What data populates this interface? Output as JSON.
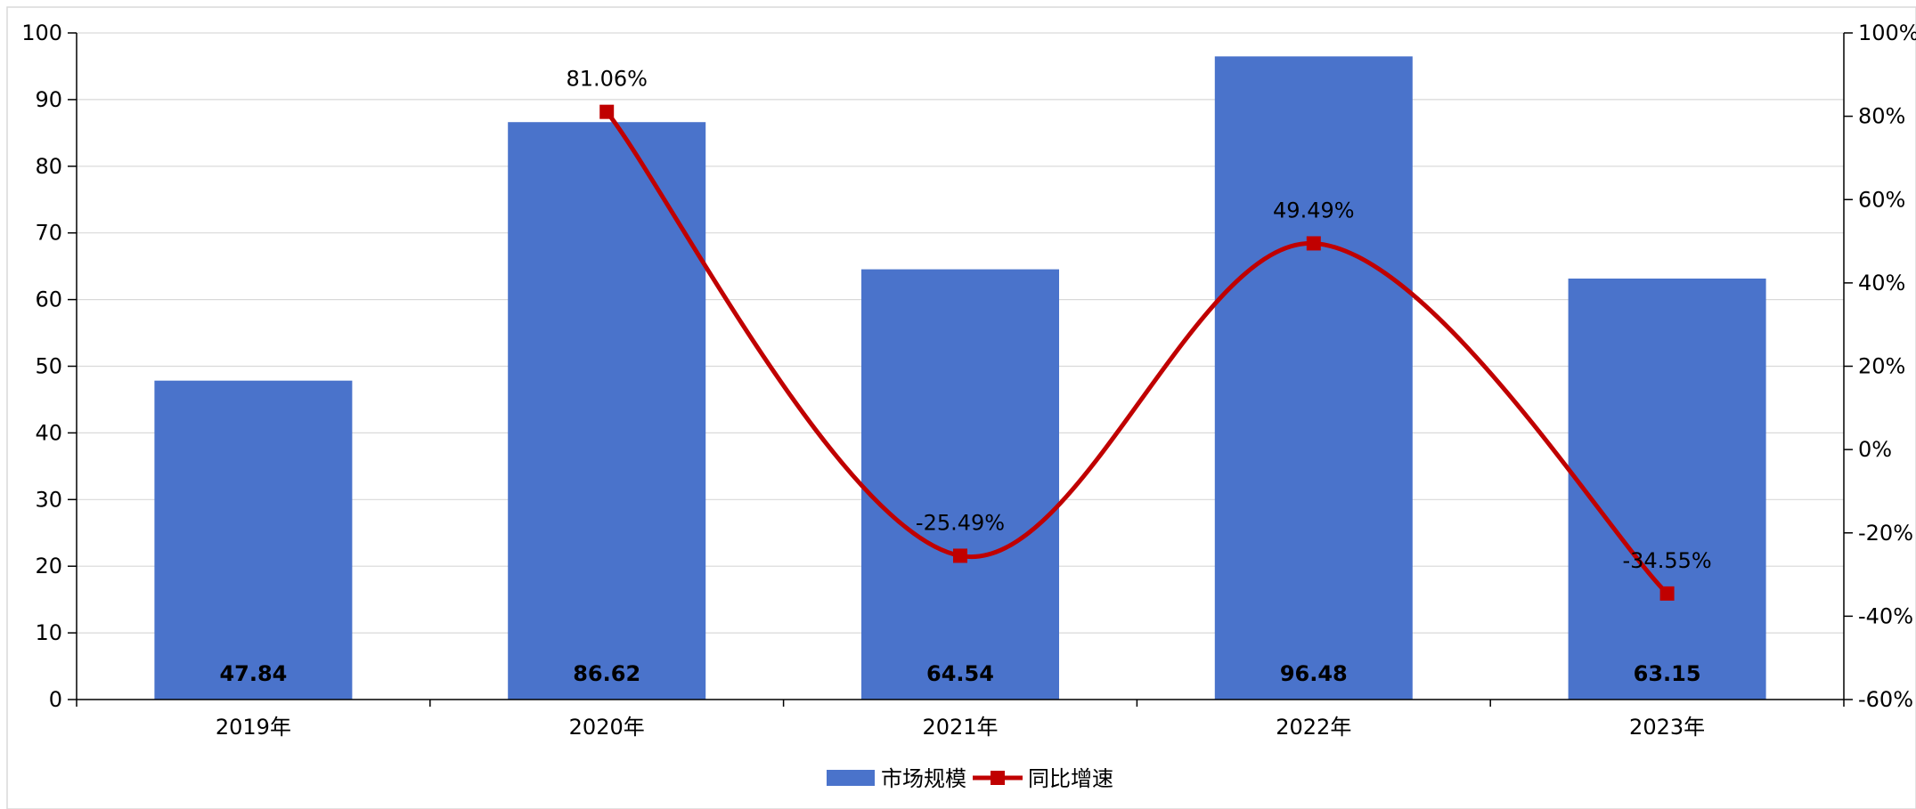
{
  "chart_data": {
    "type": "bar",
    "title": "",
    "categories": [
      "2019年",
      "2020年",
      "2021年",
      "2022年",
      "2023年"
    ],
    "series": [
      {
        "name": "市场规模",
        "type": "bar",
        "axis": "left",
        "color": "#4A73CB",
        "values": [
          47.84,
          86.62,
          64.54,
          96.48,
          63.15
        ],
        "labels": [
          "47.84",
          "86.62",
          "64.54",
          "96.48",
          "63.15"
        ]
      },
      {
        "name": "同比增速",
        "type": "line",
        "axis": "right",
        "color": "#C00000",
        "smooth": true,
        "marker": "square",
        "values": [
          null,
          81.06,
          -25.49,
          49.49,
          -34.55
        ],
        "labels": [
          "",
          "81.06%",
          "-25.49%",
          "49.49%",
          "-34.55%"
        ]
      }
    ],
    "y_left": {
      "min": 0,
      "max": 100,
      "step": 10,
      "ticks": [
        "0",
        "10",
        "20",
        "30",
        "40",
        "50",
        "60",
        "70",
        "80",
        "90",
        "100"
      ]
    },
    "y_right": {
      "min": -60,
      "max": 100,
      "step": 20,
      "ticks": [
        "-60%",
        "-40%",
        "-20%",
        "0%",
        "20%",
        "40%",
        "60%",
        "80%",
        "100%"
      ]
    },
    "grid": true,
    "legend": "bottom-center"
  }
}
